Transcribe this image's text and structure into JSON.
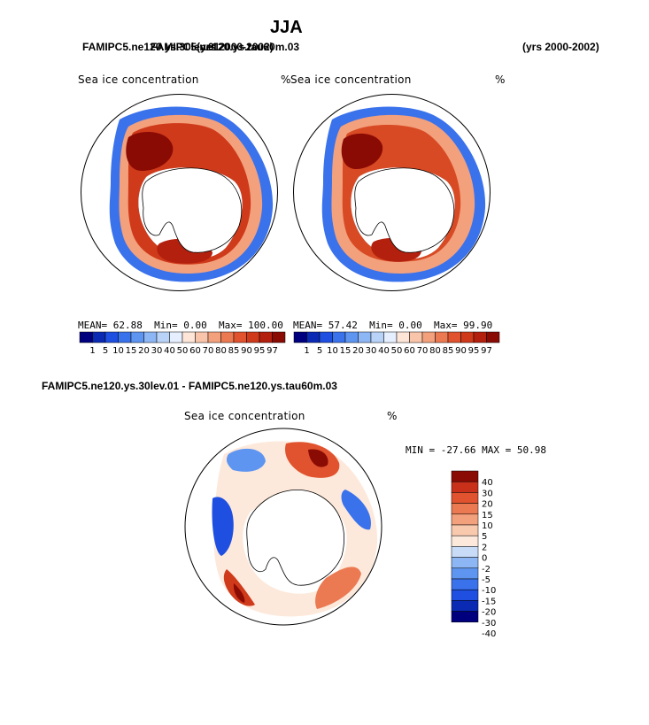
{
  "page": {
    "title": "JJA",
    "header_left": "FAMIPC5.ne120.ys.30lev.01",
    "header_left_overlap": "FAMIPC5.ne120.ys.tau60m.03",
    "header_mid": "(yrs 2000-2002)",
    "header_right": "(yrs 2000-2002)",
    "diff_title": "FAMIPC5.ne120.ys.30lev.01 - FAMIPC5.ne120.ys.tau60m.03"
  },
  "colors": {
    "abs_scale": [
      "#00007f",
      "#0a2ab4",
      "#1f4fe0",
      "#3a72ec",
      "#5e95f0",
      "#8cb6f4",
      "#b9d2f7",
      "#e6efff",
      "#fde6d8",
      "#f9c5aa",
      "#f3a07c",
      "#eb7a52",
      "#e0532e",
      "#cf3a1a",
      "#b3200e",
      "#8a0a04"
    ],
    "diff_scale": [
      "#00007f",
      "#0a2ab4",
      "#1f4fe0",
      "#3a72ec",
      "#5e95f0",
      "#8cb6f4",
      "#c8dcf8",
      "#fde9db",
      "#f9c9ae",
      "#f3a07c",
      "#eb7a52",
      "#e0532e",
      "#c8301a",
      "#8a0a04"
    ]
  },
  "chart_data": [
    {
      "type": "heatmap",
      "panel": "left",
      "label": "Sea ice concentration",
      "units": "%",
      "stats": {
        "mean": "MEAN=",
        "mean_val": "62.88",
        "min": "Min=",
        "min_val": "0.00",
        "max": "Max=",
        "max_val": "100.00"
      },
      "colorbar_ticks": [
        "1",
        "5",
        "10",
        "15",
        "20",
        "30",
        "40",
        "50",
        "60",
        "70",
        "80",
        "85",
        "90",
        "95",
        "97"
      ]
    },
    {
      "type": "heatmap",
      "panel": "right",
      "label": "Sea ice concentration",
      "units": "%",
      "stats": {
        "mean": "MEAN=",
        "mean_val": "57.42",
        "min": "Min=",
        "min_val": "0.00",
        "max": "Max=",
        "max_val": "99.90"
      },
      "colorbar_ticks": [
        "1",
        "5",
        "10",
        "15",
        "20",
        "30",
        "40",
        "50",
        "60",
        "70",
        "80",
        "85",
        "90",
        "95",
        "97"
      ]
    },
    {
      "type": "heatmap",
      "panel": "difference",
      "label": "Sea ice concentration",
      "units": "%",
      "range_text": "MIN = -27.66 MAX =  50.98",
      "colorbar_ticks": [
        "40",
        "30",
        "20",
        "15",
        "10",
        "5",
        "2",
        "0",
        "-2",
        "-5",
        "-10",
        "-15",
        "-20",
        "-30",
        "-40"
      ]
    }
  ]
}
